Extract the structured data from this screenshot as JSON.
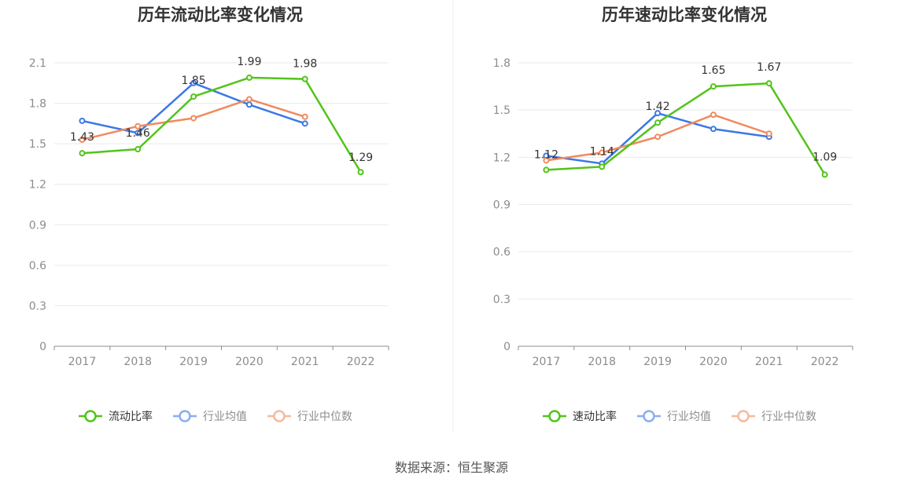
{
  "source_text": "数据来源：恒生聚源",
  "chart_data": [
    {
      "type": "line",
      "title": "历年流动比率变化情况",
      "categories": [
        "2017",
        "2018",
        "2019",
        "2020",
        "2021",
        "2022"
      ],
      "ylim": [
        0,
        2.1
      ],
      "yticks": [
        "0",
        "0.3",
        "0.6",
        "0.9",
        "1.2",
        "1.5",
        "1.8",
        "2.1"
      ],
      "grid": true,
      "legend_position": "bottom",
      "series": [
        {
          "name": "流动比率",
          "color": "#52c41a",
          "values": [
            1.43,
            1.46,
            1.85,
            1.99,
            1.98,
            1.29
          ],
          "labels": [
            "1.43",
            "1.46",
            "1.85",
            "1.99",
            "1.98",
            "1.29"
          ]
        },
        {
          "name": "行业均值",
          "color": "#3b78e7",
          "values": [
            1.67,
            1.58,
            1.95,
            1.79,
            1.65,
            null
          ]
        },
        {
          "name": "行业中位数",
          "color": "#f08a5d",
          "values": [
            1.53,
            1.63,
            1.69,
            1.83,
            1.7,
            null
          ]
        }
      ]
    },
    {
      "type": "line",
      "title": "历年速动比率变化情况",
      "categories": [
        "2017",
        "2018",
        "2019",
        "2020",
        "2021",
        "2022"
      ],
      "ylim": [
        0,
        1.8
      ],
      "yticks": [
        "0",
        "0.3",
        "0.6",
        "0.9",
        "1.2",
        "1.5",
        "1.8"
      ],
      "grid": true,
      "legend_position": "bottom",
      "series": [
        {
          "name": "速动比率",
          "color": "#52c41a",
          "values": [
            1.12,
            1.14,
            1.42,
            1.65,
            1.67,
            1.09
          ],
          "labels": [
            "1.12",
            "1.14",
            "1.42",
            "1.65",
            "1.67",
            "1.09"
          ]
        },
        {
          "name": "行业均值",
          "color": "#3b78e7",
          "values": [
            1.21,
            1.16,
            1.48,
            1.38,
            1.33,
            null
          ]
        },
        {
          "name": "行业中位数",
          "color": "#f08a5d",
          "values": [
            1.18,
            1.23,
            1.33,
            1.47,
            1.35,
            null
          ]
        }
      ]
    }
  ]
}
